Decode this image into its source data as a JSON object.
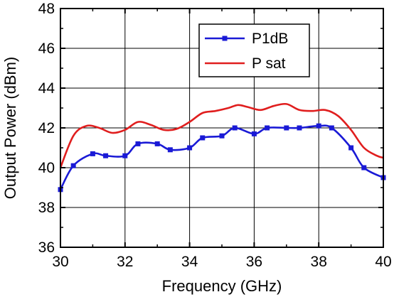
{
  "chart_data": {
    "type": "line",
    "title": "",
    "xlabel": "Frequency  (GHz)",
    "ylabel": "Output Power  (dBm)",
    "xlim": [
      30,
      40
    ],
    "ylim": [
      36,
      48
    ],
    "xticks": [
      30,
      32,
      34,
      36,
      38,
      40
    ],
    "yticks": [
      36,
      38,
      40,
      42,
      44,
      46,
      48
    ],
    "grid": true,
    "legend_position": "top-right",
    "series": [
      {
        "name": "P1dB",
        "color": "#1a1ad6",
        "marker": "square",
        "x": [
          30.0,
          30.4,
          31.0,
          31.4,
          32.0,
          32.4,
          33.0,
          33.4,
          34.0,
          34.4,
          35.0,
          35.4,
          36.0,
          36.4,
          37.0,
          37.4,
          38.0,
          38.4,
          39.0,
          39.4,
          40.0
        ],
        "y": [
          38.9,
          40.1,
          40.7,
          40.6,
          40.6,
          41.2,
          41.2,
          40.9,
          41.0,
          41.5,
          41.6,
          42.0,
          41.7,
          42.0,
          42.0,
          42.0,
          42.1,
          42.0,
          41.0,
          40.0,
          39.5
        ]
      },
      {
        "name": "P sat",
        "color": "#e01e1e",
        "marker": "none",
        "x": [
          30.0,
          30.4,
          30.8,
          31.2,
          31.6,
          32.0,
          32.4,
          32.8,
          33.2,
          33.6,
          34.0,
          34.4,
          34.8,
          35.2,
          35.5,
          35.8,
          36.2,
          36.6,
          37.0,
          37.4,
          37.8,
          38.2,
          38.6,
          39.0,
          39.4,
          39.8,
          40.0
        ],
        "y": [
          40.0,
          41.6,
          42.1,
          42.0,
          41.75,
          41.9,
          42.3,
          42.15,
          41.9,
          41.95,
          42.3,
          42.75,
          42.85,
          43.0,
          43.15,
          43.05,
          42.9,
          43.1,
          43.2,
          42.9,
          42.85,
          42.9,
          42.6,
          41.9,
          41.0,
          40.6,
          40.5
        ]
      }
    ]
  }
}
